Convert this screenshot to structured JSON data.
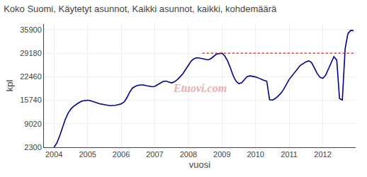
{
  "chart_data": {
    "type": "line",
    "title": "Koko Suomi, Käytetyt asunnot, Kaikki asunnot, kaikki, kohdemäärä",
    "xlabel": "vuosi",
    "ylabel": "kpl",
    "x": [
      2004.0,
      2004.083,
      2004.167,
      2004.25,
      2004.333,
      2004.417,
      2004.5,
      2004.583,
      2004.667,
      2004.75,
      2004.833,
      2004.917,
      2005.0,
      2005.083,
      2005.167,
      2005.25,
      2005.333,
      2005.417,
      2005.5,
      2005.583,
      2005.667,
      2005.75,
      2005.833,
      2005.917,
      2006.0,
      2006.083,
      2006.167,
      2006.25,
      2006.333,
      2006.417,
      2006.5,
      2006.583,
      2006.667,
      2006.75,
      2006.833,
      2006.917,
      2007.0,
      2007.083,
      2007.167,
      2007.25,
      2007.333,
      2007.417,
      2007.5,
      2007.583,
      2007.667,
      2007.75,
      2007.833,
      2007.917,
      2008.0,
      2008.083,
      2008.167,
      2008.25,
      2008.333,
      2008.417,
      2008.5,
      2008.583,
      2008.667,
      2008.75,
      2008.833,
      2008.917,
      2009.0,
      2009.083,
      2009.167,
      2009.25,
      2009.333,
      2009.417,
      2009.5,
      2009.583,
      2009.667,
      2009.75,
      2009.833,
      2009.917,
      2010.0,
      2010.083,
      2010.167,
      2010.25,
      2010.333,
      2010.417,
      2010.5,
      2010.583,
      2010.667,
      2010.75,
      2010.833,
      2010.917,
      2011.0,
      2011.083,
      2011.167,
      2011.25,
      2011.333,
      2011.417,
      2011.5,
      2011.583,
      2011.667,
      2011.75,
      2011.833,
      2011.917,
      2012.0,
      2012.083,
      2012.167,
      2012.25,
      2012.333,
      2012.417,
      2012.5,
      2012.583,
      2012.667,
      2012.75,
      2012.833,
      2012.917
    ],
    "series": [
      {
        "color": "#00008B",
        "values": [
          2300,
          3500,
          5500,
          7800,
          10200,
          12000,
          13200,
          14000,
          14600,
          15100,
          15500,
          15700,
          15750,
          15600,
          15400,
          15100,
          14800,
          14600,
          14500,
          14350,
          14200,
          14200,
          14300,
          14500,
          14700,
          15200,
          16400,
          18000,
          19200,
          19700,
          20000,
          20100,
          20100,
          19900,
          19700,
          19600,
          19700,
          20200,
          20700,
          21100,
          21200,
          20900,
          20700,
          21000,
          21600,
          22400,
          23300,
          24500,
          25800,
          26900,
          27600,
          27900,
          27800,
          27600,
          27400,
          27300,
          27600,
          28300,
          28900,
          29050,
          29180,
          28400,
          27000,
          25000,
          22800,
          21200,
          20500,
          20700,
          21600,
          22500,
          22700,
          22600,
          22400,
          22100,
          21700,
          21400,
          21200,
          15900,
          15750,
          16200,
          16900,
          17700,
          18800,
          20200,
          21700,
          22700,
          23700,
          24700,
          25700,
          26200,
          26700,
          27000,
          26500,
          25000,
          23400,
          22300,
          22000,
          22800,
          24500,
          26500,
          28200,
          27200,
          16200,
          15800,
          30500,
          34800,
          35700,
          35600
        ]
      },
      {
        "color": "#ff0000",
        "line_style": "dotted",
        "x": [
          2008.42,
          2012.98
        ],
        "values": [
          29180,
          29180
        ]
      }
    ],
    "annotations": [
      {
        "text": "Etuovi.com",
        "color": "#e8a0a0"
      }
    ],
    "xlim": [
      2003.7,
      2012.98
    ],
    "ylim": [
      2300,
      37500
    ],
    "xticks": [
      2004,
      2005,
      2006,
      2007,
      2008,
      2009,
      2010,
      2011,
      2012
    ],
    "yticks": [
      2300,
      9020,
      15740,
      22460,
      29180,
      35900
    ],
    "grid": true
  }
}
